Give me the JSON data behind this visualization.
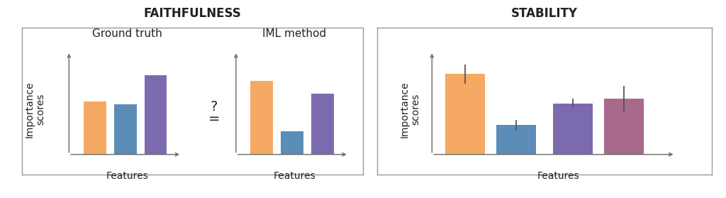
{
  "faithfulness_title": "FAITHFULNESS",
  "stability_title": "STABILITY",
  "ground_truth_title": "Ground truth",
  "iml_method_title": "IML method",
  "ylabel": "Importance\nscores",
  "xlabel": "Features",
  "eq_label": "?\n=",
  "gt_bars": {
    "values": [
      0.45,
      0.43,
      0.68
    ],
    "colors": [
      "#F5A962",
      "#5B8DB8",
      "#7B6BAE"
    ]
  },
  "iml_bars": {
    "values": [
      0.63,
      0.2,
      0.52
    ],
    "colors": [
      "#F5A962",
      "#5B8DB8",
      "#7B6BAE"
    ]
  },
  "stability_bars": {
    "values": [
      0.82,
      0.3,
      0.52,
      0.57
    ],
    "errors": [
      0.1,
      0.055,
      0.048,
      0.13
    ],
    "colors": [
      "#F5A962",
      "#5B8DB8",
      "#7B6BAE",
      "#A8698A"
    ]
  },
  "bg_color": "#FFFFFF",
  "panel_bg": "#FFFFFF",
  "border_color": "#999999",
  "axis_color": "#666666",
  "title_fontsize": 12,
  "label_fontsize": 10,
  "subtitle_fontsize": 11
}
